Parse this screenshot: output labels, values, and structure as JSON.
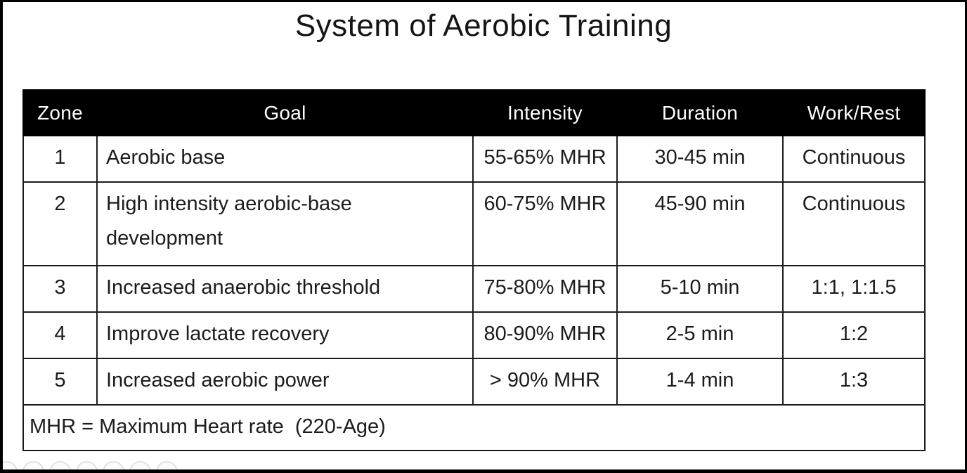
{
  "page": {
    "title": "System of Aerobic Training"
  },
  "table": {
    "columns": [
      {
        "key": "zone",
        "label": "Zone"
      },
      {
        "key": "goal",
        "label": "Goal"
      },
      {
        "key": "intensity",
        "label": "Intensity"
      },
      {
        "key": "duration",
        "label": "Duration"
      },
      {
        "key": "work_rest",
        "label": "Work/Rest"
      }
    ],
    "rows": [
      {
        "zone": "1",
        "goal": "Aerobic base",
        "intensity": "55-65% MHR",
        "duration": "30-45 min",
        "work_rest": "Continuous",
        "tall": false
      },
      {
        "zone": "2",
        "goal": "High intensity aerobic-base development",
        "intensity": "60-75% MHR",
        "duration": "45-90 min",
        "work_rest": "Continuous",
        "tall": true
      },
      {
        "zone": "3",
        "goal": "Increased anaerobic threshold",
        "intensity": "75-80% MHR",
        "duration": "5-10 min",
        "work_rest": "1:1, 1:1.5",
        "tall": false
      },
      {
        "zone": "4",
        "goal": "Improve lactate recovery",
        "intensity": "80-90% MHR",
        "duration": "2-5 min",
        "work_rest": "1:2",
        "tall": false
      },
      {
        "zone": "5",
        "goal": "Increased aerobic power",
        "intensity": "> 90% MHR",
        "duration": "1-4 min",
        "work_rest": "1:3",
        "tall": false
      }
    ],
    "footnote": "MHR = Maximum Heart rate  (220-Age)"
  },
  "colors": {
    "header_bg": "#000000",
    "header_text": "#ffffff",
    "border": "#1c1c1c",
    "body_text": "#1c1c1c",
    "frame": "#000000",
    "dock_circle_outline": "#e2e2e2"
  },
  "decor": {
    "bottom_circle_count": 7
  }
}
